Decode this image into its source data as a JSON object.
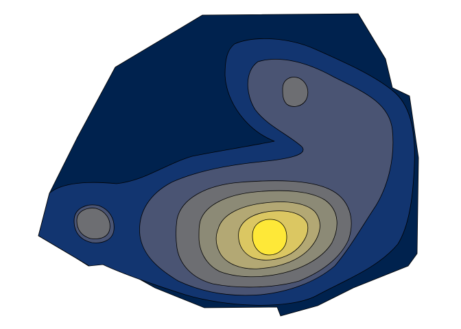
{
  "chart_data": {
    "type": "filled-contour",
    "colormap": "cividis",
    "axes_visible": false,
    "grid": false,
    "legend": "none",
    "levels": [
      {
        "level": 0,
        "color": "#00224e"
      },
      {
        "level": 1,
        "color": "#123570"
      },
      {
        "level": 2,
        "color": "#4a5473"
      },
      {
        "level": 3,
        "color": "#6d6e72"
      },
      {
        "level": 4,
        "color": "#8c8a76"
      },
      {
        "level": 5,
        "color": "#b3a874"
      },
      {
        "level": 6,
        "color": "#dbc762"
      },
      {
        "level": 7,
        "color": "#fee838"
      }
    ],
    "peaks": [
      {
        "name": "main",
        "max_level": 7
      },
      {
        "name": "upper",
        "max_level": 3
      },
      {
        "name": "left",
        "max_level": 3
      }
    ]
  }
}
